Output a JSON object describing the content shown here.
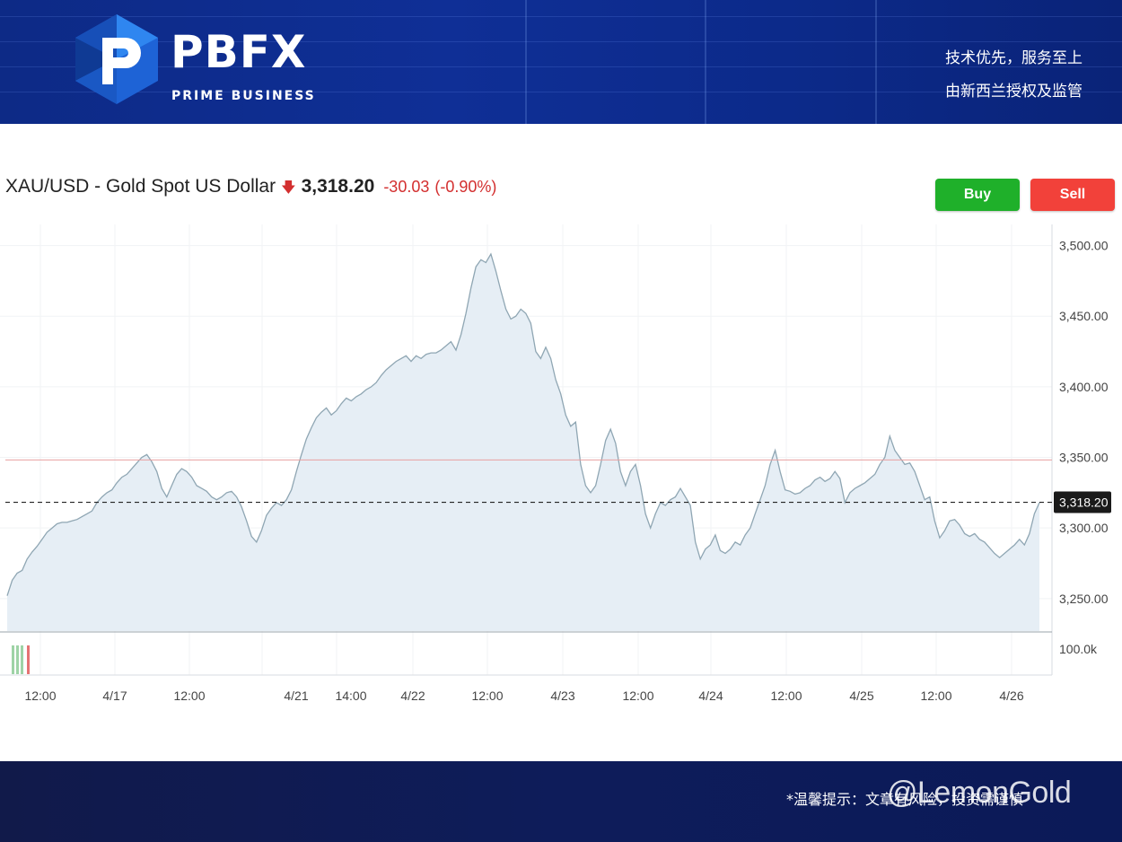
{
  "header": {
    "logo_text": "PBFX",
    "logo_sub": "PRIME BUSINESS",
    "slogan_line1": "技术优先，服务至上",
    "slogan_line2": "由新西兰授权及监管"
  },
  "quote": {
    "title": "XAU/USD - Gold Spot US Dollar",
    "direction_icon": "arrow-down-icon",
    "price": "3,318.20",
    "change": "-30.03",
    "change_pct": "(-0.90%)"
  },
  "buttons": {
    "buy": "Buy",
    "sell": "Sell"
  },
  "colors": {
    "buy": "#1fb02a",
    "sell": "#f2413a",
    "down": "#d32f2f",
    "line": "#8fa6b3",
    "area": "#e6eef5",
    "ref_line": "#e8a0a0"
  },
  "footer": {
    "note": "*温馨提示：文章有风险，投资需谨慎",
    "watermark": "@LemonGold"
  },
  "chart_data": {
    "type": "area",
    "title": "XAU/USD - Gold Spot US Dollar",
    "x_tick_labels": [
      "12:00",
      "4/17",
      "12:00",
      "4/21",
      "14:00",
      "4/22",
      "12:00",
      "4/23",
      "12:00",
      "4/24",
      "12:00",
      "4/25",
      "12:00",
      "4/26"
    ],
    "y_tick_labels": [
      "3,500.00",
      "3,450.00",
      "3,400.00",
      "3,350.00",
      "3,300.00",
      "3,250.00"
    ],
    "y_ticks": [
      3500,
      3450,
      3400,
      3350,
      3300,
      3250
    ],
    "ylim": [
      3227,
      3515
    ],
    "current_price": 3318.2,
    "current_price_label": "3,318.20",
    "reference_level": 3348.2,
    "volume_label": "100.0k",
    "grid": true,
    "series": [
      {
        "values": [
          3252,
          3263,
          3268,
          3270,
          3278,
          3283,
          3287,
          3292,
          3297,
          3300,
          3303,
          3304,
          3304,
          3305,
          3306,
          3308,
          3310,
          3312,
          3318,
          3322,
          3325,
          3327,
          3332,
          3336,
          3338,
          3342,
          3346,
          3350,
          3352,
          3347,
          3340,
          3328,
          3322,
          3330,
          3338,
          3342,
          3340,
          3336,
          3330,
          3328,
          3326,
          3322,
          3320,
          3322,
          3325,
          3326,
          3322,
          3315,
          3305,
          3294,
          3290,
          3298,
          3309,
          3314,
          3318,
          3316,
          3320,
          3327,
          3340,
          3352,
          3363,
          3371,
          3378,
          3382,
          3385,
          3380,
          3383,
          3388,
          3392,
          3390,
          3393,
          3395,
          3398,
          3400,
          3403,
          3408,
          3412,
          3415,
          3418,
          3420,
          3422,
          3418,
          3422,
          3420,
          3423,
          3424,
          3424,
          3426,
          3429,
          3432,
          3426,
          3437,
          3452,
          3470,
          3485,
          3490,
          3488,
          3494,
          3482,
          3468,
          3455,
          3448,
          3450,
          3455,
          3452,
          3445,
          3425,
          3420,
          3428,
          3420,
          3405,
          3395,
          3380,
          3372,
          3375,
          3345,
          3330,
          3325,
          3330,
          3345,
          3362,
          3370,
          3360,
          3340,
          3330,
          3340,
          3345,
          3330,
          3310,
          3300,
          3310,
          3318,
          3316,
          3320,
          3322,
          3328,
          3322,
          3316,
          3290,
          3278,
          3285,
          3288,
          3295,
          3284,
          3282,
          3285,
          3290,
          3288,
          3295,
          3300,
          3310,
          3320,
          3330,
          3345,
          3355,
          3340,
          3327,
          3326,
          3324,
          3325,
          3328,
          3330,
          3334,
          3336,
          3333,
          3335,
          3340,
          3335,
          3318,
          3325,
          3328,
          3330,
          3332,
          3335,
          3338,
          3345,
          3350,
          3365,
          3355,
          3350,
          3345,
          3346,
          3340,
          3330,
          3320,
          3322,
          3305,
          3293,
          3298,
          3305,
          3306,
          3302,
          3296,
          3294,
          3296,
          3292,
          3290,
          3286,
          3282,
          3279,
          3282,
          3285,
          3288,
          3292,
          3288,
          3296,
          3310,
          3318
        ]
      }
    ]
  }
}
